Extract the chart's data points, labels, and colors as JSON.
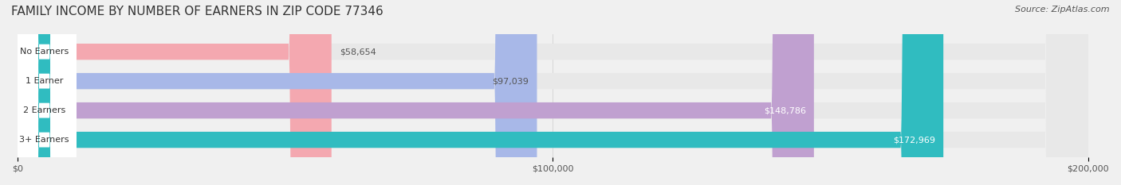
{
  "title": "FAMILY INCOME BY NUMBER OF EARNERS IN ZIP CODE 77346",
  "source": "Source: ZipAtlas.com",
  "categories": [
    "No Earners",
    "1 Earner",
    "2 Earners",
    "3+ Earners"
  ],
  "values": [
    58654,
    97039,
    148786,
    172969
  ],
  "value_labels": [
    "$58,654",
    "$97,039",
    "$148,786",
    "$172,969"
  ],
  "bar_colors": [
    "#f4a8b0",
    "#a8b8e8",
    "#c0a0d0",
    "#30bcc0"
  ],
  "bar_label_colors": [
    "#555555",
    "#555555",
    "#ffffff",
    "#ffffff"
  ],
  "label_bg_colors": [
    "#f4a8b0",
    "#a8b8e8",
    "#c0a0d0",
    "#30bcc0"
  ],
  "background_color": "#f0f0f0",
  "bar_bg_color": "#e8e8e8",
  "xlim": [
    0,
    200000
  ],
  "xticks": [
    0,
    100000,
    200000
  ],
  "xtick_labels": [
    "$0",
    "$100,000",
    "$200,000"
  ],
  "title_fontsize": 11,
  "source_fontsize": 8,
  "bar_height": 0.55,
  "figsize": [
    14.06,
    2.33
  ],
  "dpi": 100
}
